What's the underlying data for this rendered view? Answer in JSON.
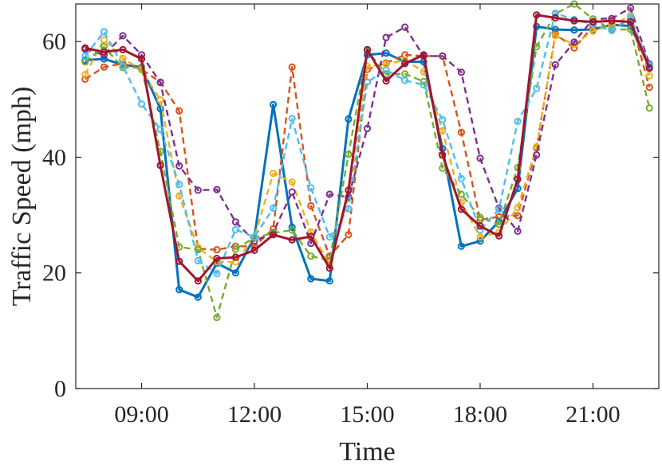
{
  "chart_data": {
    "type": "line",
    "xlabel": "Time",
    "ylabel": "Traffic Speed (mph)",
    "xlim": [
      7.25,
      22.75
    ],
    "ylim": [
      0,
      66.5
    ],
    "xticks": [
      9,
      12,
      15,
      18,
      21
    ],
    "xtick_labels": [
      "09:00",
      "12:00",
      "15:00",
      "18:00",
      "21:00"
    ],
    "yticks": [
      0,
      20,
      40,
      60
    ],
    "ytick_labels": [
      "0",
      "20",
      "40",
      "60"
    ],
    "grid": false,
    "x": [
      7.5,
      8,
      8.5,
      9,
      9.5,
      10,
      10.5,
      11,
      11.5,
      12,
      12.5,
      13,
      13.5,
      14,
      14.5,
      15,
      15.5,
      16,
      16.5,
      17,
      17.5,
      18,
      18.5,
      19,
      19.5,
      20,
      20.5,
      21,
      21.5,
      22,
      22.5
    ],
    "series": [
      {
        "color": "#0072BD",
        "style": "solid",
        "values": [
          56.8,
          57.0,
          56.0,
          55.6,
          48.4,
          17.1,
          15.8,
          21.7,
          20.0,
          26.2,
          49.1,
          27.9,
          19.0,
          18.6,
          46.6,
          57.7,
          58.0,
          56.5,
          56.5,
          41.5,
          24.6,
          25.5,
          28.9,
          34.6,
          62.6,
          62.1,
          62.0,
          62.1,
          62.9,
          62.7,
          55.6
        ]
      },
      {
        "color": "#D95319",
        "style": "dashed",
        "values": [
          53.5,
          55.6,
          56.2,
          55.2,
          53.0,
          48.0,
          24.2,
          24.0,
          24.6,
          24.6,
          27.6,
          55.6,
          31.6,
          22.9,
          26.6,
          55.2,
          56.3,
          57.7,
          57.5,
          57.5,
          44.3,
          29.2,
          29.7,
          29.9,
          41.6,
          61.3,
          58.9,
          62.6,
          62.1,
          64.0,
          52.1
        ]
      },
      {
        "color": "#EDB120",
        "style": "dashed",
        "values": [
          54.3,
          60.3,
          57.1,
          55.1,
          49.9,
          33.3,
          24.4,
          21.9,
          21.9,
          26.2,
          37.2,
          35.7,
          27.1,
          21.5,
          33.1,
          55.7,
          56.1,
          56.8,
          54.8,
          44.6,
          32.2,
          26.2,
          27.0,
          31.3,
          41.8,
          61.0,
          59.5,
          61.8,
          62.8,
          64.5,
          54.1
        ]
      },
      {
        "color": "#7E2F8E",
        "style": "dashed",
        "values": [
          58.7,
          57.7,
          61.0,
          57.7,
          52.9,
          38.5,
          34.3,
          34.4,
          28.8,
          25.5,
          27.0,
          34.0,
          25.1,
          33.6,
          33.1,
          45.0,
          60.7,
          62.5,
          57.5,
          57.5,
          54.7,
          39.8,
          31.2,
          27.2,
          40.4,
          56.0,
          59.9,
          63.9,
          64.0,
          65.8,
          56.1
        ]
      },
      {
        "color": "#77AC30",
        "style": "dashed",
        "values": [
          56.5,
          59.1,
          55.5,
          55.5,
          41.0,
          24.5,
          24.0,
          12.3,
          24.1,
          26.1,
          26.9,
          27.4,
          22.9,
          22.2,
          40.5,
          58.4,
          54.4,
          54.4,
          53.1,
          38.1,
          33.6,
          29.6,
          28.4,
          38.2,
          59.1,
          64.8,
          66.5,
          63.9,
          62.1,
          62.1,
          48.5
        ]
      },
      {
        "color": "#4DBEEE",
        "style": "dashed",
        "values": [
          57.5,
          61.7,
          55.8,
          49.2,
          44.8,
          35.3,
          22.1,
          19.9,
          27.5,
          26.2,
          31.2,
          46.7,
          34.7,
          26.2,
          31.1,
          53.0,
          55.1,
          53.3,
          52.5,
          46.5,
          36.3,
          27.4,
          31.0,
          46.2,
          51.9,
          64.9,
          63.8,
          63.0,
          61.9,
          64.2,
          55.9
        ]
      },
      {
        "color": "#A2142F",
        "style": "solid",
        "values": [
          58.9,
          58.2,
          58.6,
          57.0,
          38.6,
          22.0,
          18.6,
          22.5,
          22.7,
          23.9,
          26.6,
          25.7,
          26.3,
          20.8,
          34.3,
          58.6,
          53.2,
          56.2,
          57.7,
          40.4,
          31.0,
          28.1,
          26.4,
          36.2,
          64.6,
          64.1,
          63.6,
          63.4,
          63.6,
          63.4,
          55.4
        ]
      }
    ]
  }
}
